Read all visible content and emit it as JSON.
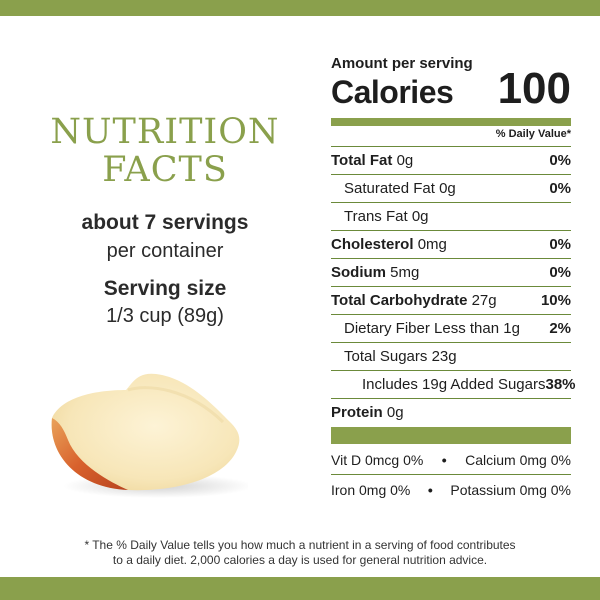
{
  "colors": {
    "accent": "#8aa04c",
    "text": "#1e1e1e"
  },
  "left": {
    "title_line1": "NUTRITION",
    "title_line2": "FACTS",
    "servings_bold": "about 7 servings",
    "servings_light": "per container",
    "serving_size_label": "Serving size",
    "serving_size_value": "1/3 cup (89g)"
  },
  "label": {
    "amount_per_serving": "Amount per serving",
    "calories_label": "Calories",
    "calories_value": "100",
    "daily_value_header": "% Daily Value*",
    "rows": [
      {
        "name": "Total Fat",
        "amount": "0g",
        "dv": "0%"
      },
      {
        "name": "Saturated Fat",
        "amount": "0g",
        "dv": "0%"
      },
      {
        "name": "Trans Fat",
        "amount": "0g",
        "dv": ""
      },
      {
        "name": "Cholesterol",
        "amount": "0mg",
        "dv": "0%"
      },
      {
        "name": "Sodium",
        "amount": "5mg",
        "dv": "0%"
      },
      {
        "name": "Total Carbohydrate",
        "amount": "27g",
        "dv": "10%"
      },
      {
        "name": "Dietary Fiber",
        "amount": "Less than 1g",
        "dv": "2%"
      },
      {
        "name": "Total Sugars",
        "amount": "23g",
        "dv": ""
      },
      {
        "name": "Includes 19g Added Sugars",
        "amount": "",
        "dv": "38%"
      },
      {
        "name": "Protein",
        "amount": "0g",
        "dv": ""
      }
    ],
    "vitamins": [
      {
        "left": "Vit D 0mcg 0%",
        "right": "Calcium 0mg 0%"
      },
      {
        "left": "Iron 0mg 0%",
        "right": "Potassium 0mg 0%"
      }
    ],
    "bullet": "•"
  },
  "footnote": {
    "line1": "* The % Daily Value tells you how much a nutrient in a serving of food contributes",
    "line2": "to a daily diet. 2,000 calories a day is used for general nutrition advice."
  }
}
